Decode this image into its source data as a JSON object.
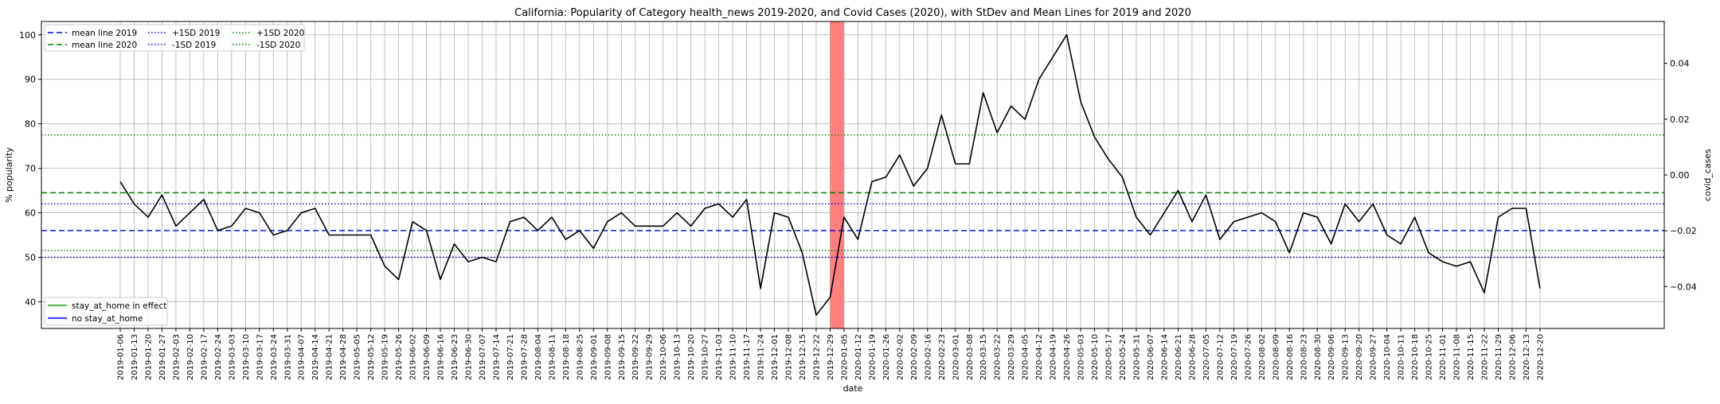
{
  "chart_data": {
    "type": "line",
    "title": "California: Popularity of Category health_news 2019-2020, and Covid Cases (2020), with StDev and Mean Lines for 2019 and 2020",
    "xlabel": "date",
    "ylabel": "% popularity",
    "y2label": "covid_cases",
    "ylim": [
      34,
      103
    ],
    "y2lim": [
      -0.055,
      0.055
    ],
    "yticks": [
      40,
      50,
      60,
      70,
      80,
      90,
      100
    ],
    "y2ticks": [
      -0.04,
      -0.02,
      0.0,
      0.02,
      0.04
    ],
    "y2tick_labels": [
      "−0.04",
      "−0.02",
      "0.00",
      "0.02",
      "0.04"
    ],
    "grid": true,
    "x": [
      "2019-01-06",
      "2019-01-13",
      "2019-01-20",
      "2019-01-27",
      "2019-02-03",
      "2019-02-10",
      "2019-02-17",
      "2019-02-24",
      "2019-03-03",
      "2019-03-10",
      "2019-03-17",
      "2019-03-24",
      "2019-03-31",
      "2019-04-07",
      "2019-04-14",
      "2019-04-21",
      "2019-04-28",
      "2019-05-05",
      "2019-05-12",
      "2019-05-19",
      "2019-05-26",
      "2019-06-02",
      "2019-06-09",
      "2019-06-16",
      "2019-06-23",
      "2019-06-30",
      "2019-07-07",
      "2019-07-14",
      "2019-07-21",
      "2019-07-28",
      "2019-08-04",
      "2019-08-11",
      "2019-08-18",
      "2019-08-25",
      "2019-09-01",
      "2019-09-08",
      "2019-09-15",
      "2019-09-22",
      "2019-09-29",
      "2019-10-06",
      "2019-10-13",
      "2019-10-20",
      "2019-10-27",
      "2019-11-03",
      "2019-11-10",
      "2019-11-17",
      "2019-11-24",
      "2019-12-01",
      "2019-12-08",
      "2019-12-15",
      "2019-12-22",
      "2019-12-29",
      "2020-01-05",
      "2020-01-12",
      "2020-01-19",
      "2020-01-26",
      "2020-02-02",
      "2020-02-09",
      "2020-02-16",
      "2020-02-23",
      "2020-03-01",
      "2020-03-08",
      "2020-03-15",
      "2020-03-22",
      "2020-03-29",
      "2020-04-05",
      "2020-04-12",
      "2020-04-19",
      "2020-04-26",
      "2020-05-03",
      "2020-05-10",
      "2020-05-17",
      "2020-05-24",
      "2020-05-31",
      "2020-06-07",
      "2020-06-14",
      "2020-06-21",
      "2020-06-28",
      "2020-07-05",
      "2020-07-12",
      "2020-07-19",
      "2020-07-26",
      "2020-08-02",
      "2020-08-09",
      "2020-08-16",
      "2020-08-23",
      "2020-08-30",
      "2020-09-06",
      "2020-09-13",
      "2020-09-20",
      "2020-09-27",
      "2020-10-04",
      "2020-10-11",
      "2020-10-18",
      "2020-10-25",
      "2020-11-01",
      "2020-11-08",
      "2020-11-15",
      "2020-11-22",
      "2020-11-29",
      "2020-12-06",
      "2020-12-13",
      "2020-12-20"
    ],
    "series": [
      {
        "values": [
          67,
          62,
          59,
          64,
          57,
          60,
          63,
          56,
          57,
          61,
          60,
          55,
          56,
          60,
          61,
          55,
          55,
          55,
          55,
          48,
          45,
          58,
          56,
          45,
          53,
          49,
          50,
          49,
          58,
          59,
          56,
          59,
          54,
          56,
          52,
          58,
          60,
          57,
          57,
          57,
          60,
          57,
          61,
          62,
          59,
          63,
          43,
          60,
          59,
          51,
          37,
          41,
          59,
          54,
          67,
          68,
          73,
          66,
          70,
          82,
          71,
          71,
          87,
          78,
          84,
          81,
          90,
          95,
          100,
          85,
          77,
          72,
          68,
          59,
          55,
          60,
          65,
          58,
          64,
          54,
          58,
          59,
          60,
          58,
          51,
          60,
          59,
          53,
          62,
          58,
          62,
          55,
          53,
          59,
          51,
          49,
          48,
          49,
          42,
          59,
          61,
          61,
          43
        ],
        "color": "#000000"
      }
    ],
    "reference_lines": [
      {
        "label": "mean line 2019",
        "value": 56,
        "color": "#0000cc",
        "style": "dashed"
      },
      {
        "label": "mean line 2020",
        "value": 64.5,
        "color": "#008000",
        "style": "dashed"
      },
      {
        "label": "+1SD 2019",
        "value": 62,
        "color": "#0000cc",
        "style": "dotted"
      },
      {
        "label": "-1SD 2019",
        "value": 50,
        "color": "#0000cc",
        "style": "dotted"
      },
      {
        "label": "+1SD 2020",
        "value": 77.5,
        "color": "#008000",
        "style": "dotted"
      },
      {
        "label": "-1SD 2020",
        "value": 51.5,
        "color": "#008000",
        "style": "dotted"
      }
    ],
    "highlight_span": {
      "from": "2019-12-29",
      "to": "2020-01-05",
      "color": "#ff7f7f"
    },
    "legend_top": {
      "placement": "upper-left",
      "entries": [
        "mean line 2019",
        "mean line 2020",
        "+1SD 2019",
        "-1SD 2019",
        "+1SD 2020",
        "-1SD 2020"
      ]
    },
    "legend_bottom": {
      "placement": "lower-left",
      "entries": [
        {
          "label": "stay_at_home in effect",
          "color": "#2ca02c"
        },
        {
          "label": "no stay_at_home",
          "color": "#0000ff"
        }
      ]
    }
  }
}
